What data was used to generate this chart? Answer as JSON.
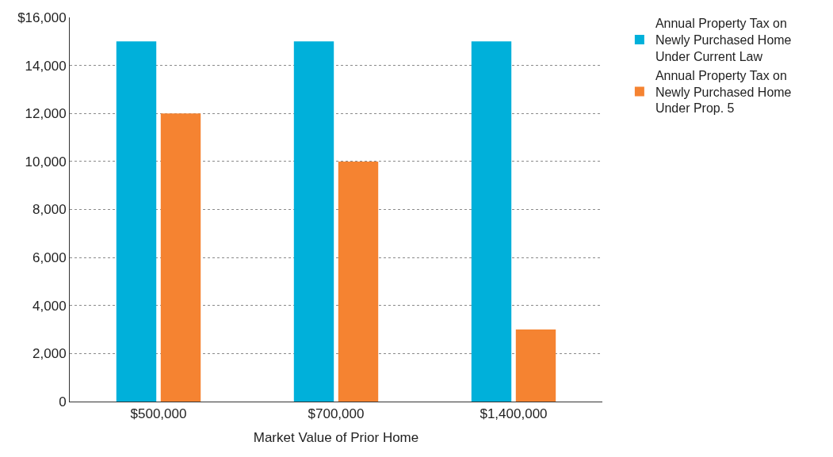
{
  "chart_data": {
    "type": "bar",
    "xlabel": "Market Value of Prior Home",
    "categories": [
      "$500,000",
      "$700,000",
      "$1,400,000"
    ],
    "series": [
      {
        "name": "Annual Property Tax on Newly Purchased Home Under Current Law",
        "color": "#00b0da",
        "values": [
          15000,
          15000,
          15000
        ]
      },
      {
        "name": "Annual Property Tax on Newly Purchased Home Under Prop. 5",
        "color": "#f58331",
        "values": [
          12000,
          10000,
          3000
        ]
      }
    ],
    "ylim": [
      0,
      16000
    ],
    "yticks": [
      0,
      {
        "value": 2000,
        "label": "2,000"
      },
      {
        "value": 4000,
        "label": "4,000"
      },
      {
        "value": 6000,
        "label": "6,000"
      },
      {
        "value": 8000,
        "label": "8,000"
      },
      {
        "value": 10000,
        "label": "10,000"
      },
      {
        "value": 12000,
        "label": "12,000"
      },
      {
        "value": 14000,
        "label": "14,000"
      },
      {
        "value": 16000,
        "label": "$16,000"
      }
    ],
    "grid": "y",
    "legend": "top right"
  }
}
